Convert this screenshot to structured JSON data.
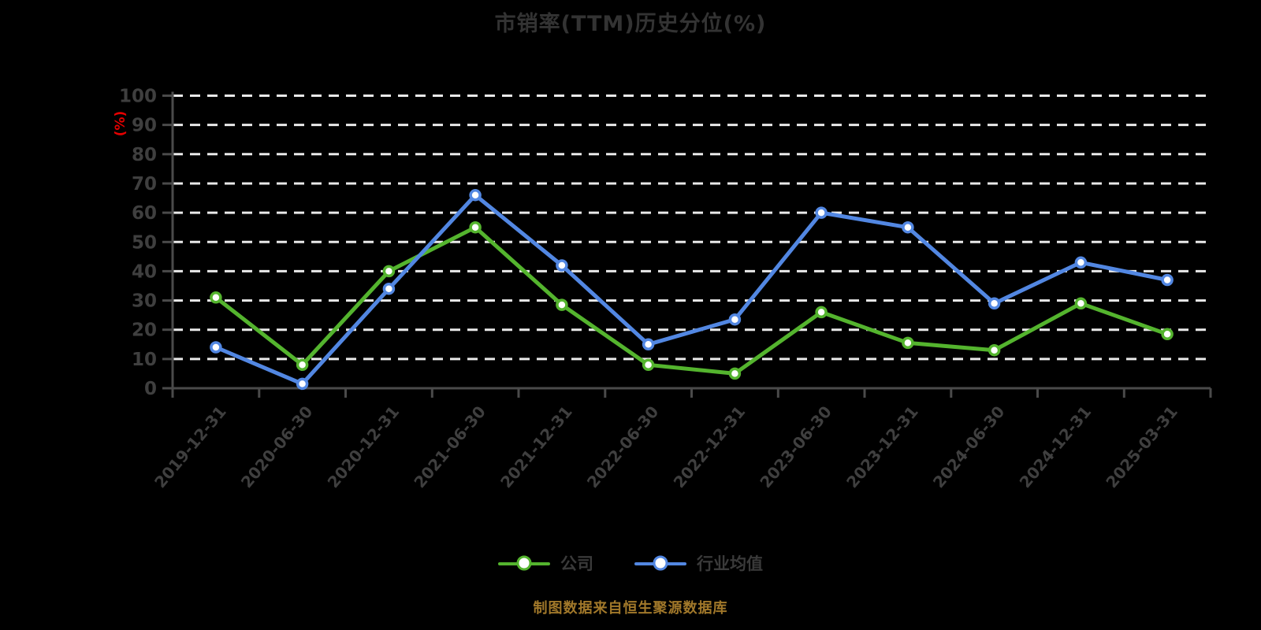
{
  "page": {
    "background": "#000000"
  },
  "chart_data": {
    "type": "line",
    "title": "市销率(TTM)历史分位(%)",
    "xlabel": "",
    "ylabel": "(%)",
    "ylim": [
      0,
      100
    ],
    "ytick_step": 10,
    "grid": "horizontal-dashed",
    "legend_position": "bottom",
    "categories": [
      "2019-12-31",
      "2020-06-30",
      "2020-12-31",
      "2021-06-30",
      "2021-12-31",
      "2022-06-30",
      "2022-12-31",
      "2023-06-30",
      "2023-12-31",
      "2024-06-30",
      "2024-12-31",
      "2025-03-31"
    ],
    "series": [
      {
        "name": "公司",
        "color": "#54b42e",
        "marker": "circle-white-fill",
        "values": [
          31,
          8,
          40,
          55,
          28.5,
          8,
          5,
          26,
          15.5,
          13,
          29,
          18.5
        ]
      },
      {
        "name": "行业均值",
        "color": "#5287e2",
        "marker": "circle-white-fill",
        "values": [
          14,
          1.5,
          34,
          66,
          42,
          15,
          23.5,
          60,
          55,
          29,
          43,
          37
        ]
      }
    ],
    "style": {
      "background": "#000000",
      "title_color": "#333333",
      "axis_color": "#4a4a4a",
      "tick_label_color": "#3f3f3f",
      "grid_color": "#e9e9e9",
      "ylabel_color": "#e60000",
      "legend_label_color": "#3a3a3a",
      "source_color": "#a1782a"
    }
  },
  "footer": {
    "source_note": "制图数据来自恒生聚源数据库"
  }
}
